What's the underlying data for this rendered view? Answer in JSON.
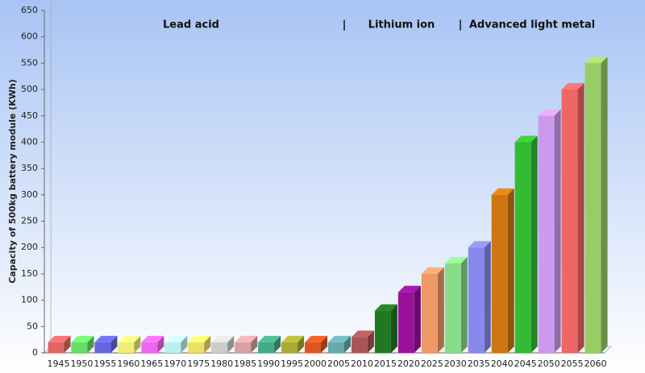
{
  "chart_data": {
    "type": "bar",
    "y_label": "Capacity of 500kg battery module (KWh)",
    "annotations": [
      "Lead acid",
      "|",
      "Lithium ion",
      "|",
      "Advanced light metal"
    ],
    "categories": [
      "1945",
      "1950",
      "1955",
      "1960",
      "1965",
      "1970",
      "1975",
      "1980",
      "1985",
      "1990",
      "1995",
      "2000",
      "2005",
      "2010",
      "2015",
      "2020",
      "2025",
      "2030",
      "2035",
      "2040",
      "2045",
      "2050",
      "2055",
      "2060"
    ],
    "values": [
      20,
      20,
      20,
      20,
      20,
      20,
      20,
      20,
      20,
      20,
      20,
      20,
      20,
      30,
      80,
      115,
      150,
      170,
      200,
      300,
      400,
      450,
      500,
      550
    ],
    "colors": [
      "#e06666",
      "#66dd66",
      "#6666dd",
      "#eeee77",
      "#ee66ee",
      "#bbeeee",
      "#eedd66",
      "#cccccc",
      "#d8a0a0",
      "#44aa88",
      "#aaaa33",
      "#dd5522",
      "#66aaaa",
      "#aa5555",
      "#227722",
      "#991199",
      "#ee9966",
      "#88dd88",
      "#8888ee",
      "#cc7711",
      "#33bb33",
      "#cc99ee",
      "#ee6666",
      "#99cc66"
    ],
    "ylim": [
      0,
      650
    ],
    "yticks": [
      0,
      50,
      100,
      150,
      200,
      250,
      300,
      350,
      400,
      450,
      500,
      550,
      600,
      650
    ],
    "grid": false
  }
}
